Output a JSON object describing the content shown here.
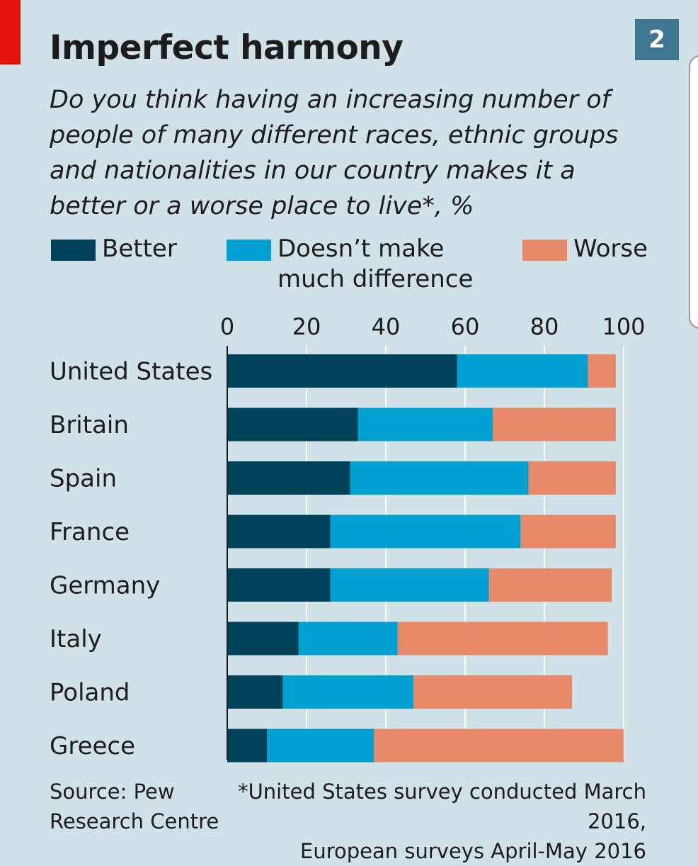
{
  "header": {
    "chart_number": "2"
  },
  "colors": {
    "better": "#00425a",
    "no_difference": "#00a0d0",
    "worse": "#e8896a",
    "grid": "#ffffff",
    "axis": "#1c1c1c",
    "background": "#d0e1e8"
  },
  "footer": {
    "source_line1": "Source: Pew",
    "source_line2": "Research Centre",
    "note_line1": "*United States survey conducted March 2016,",
    "note_line2": "European surveys April-May 2016"
  },
  "chart_data": {
    "type": "bar",
    "orientation": "horizontal",
    "stacked": true,
    "title": "Imperfect harmony",
    "subtitle": "Do you think having an increasing number of people of many different races, ethnic groups and nationalities in our country makes it a better or a worse place to live*, %",
    "legend": [
      "Better",
      "Doesn’t make much difference",
      "Worse"
    ],
    "legend_line1": [
      "Better",
      "Doesn’t make",
      "Worse"
    ],
    "legend_line2": [
      "",
      "much difference",
      ""
    ],
    "xlim": [
      0,
      100
    ],
    "xticks": [
      "0",
      "20",
      "40",
      "60",
      "80",
      "100"
    ],
    "categories": [
      "United States",
      "Britain",
      "Spain",
      "France",
      "Germany",
      "Italy",
      "Poland",
      "Greece"
    ],
    "series": [
      {
        "name": "Better",
        "values": [
          58,
          33,
          31,
          26,
          26,
          18,
          14,
          10
        ]
      },
      {
        "name": "Doesn’t make much difference",
        "values": [
          33,
          34,
          45,
          48,
          40,
          25,
          33,
          27
        ]
      },
      {
        "name": "Worse",
        "values": [
          7,
          31,
          22,
          24,
          31,
          53,
          40,
          63
        ]
      }
    ]
  }
}
